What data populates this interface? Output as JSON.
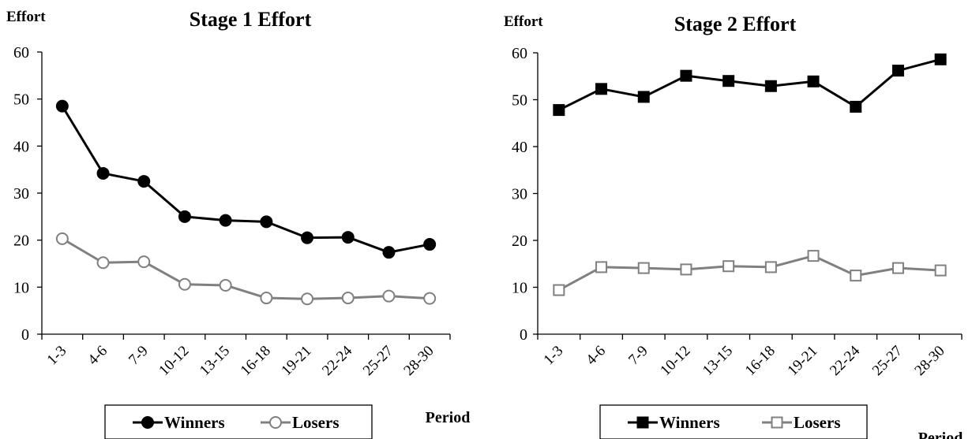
{
  "chart_data": [
    {
      "type": "line",
      "title": "Stage 1 Effort",
      "ylabel": "Effort",
      "xlabel": "Period",
      "ylim": [
        0,
        60
      ],
      "yticks": [
        0,
        10,
        20,
        30,
        40,
        50,
        60
      ],
      "categories": [
        "1-3",
        "4-6",
        "7-9",
        "10-12",
        "13-15",
        "16-18",
        "19-21",
        "22-24",
        "25-27",
        "28-30"
      ],
      "series": [
        {
          "name": "Winners",
          "marker": "circle-filled",
          "color": "#000000",
          "values": [
            48.5,
            34.2,
            32.5,
            25.0,
            24.2,
            23.9,
            20.5,
            20.6,
            17.4,
            19.1
          ]
        },
        {
          "name": "Losers",
          "marker": "circle-open",
          "color": "#808080",
          "values": [
            20.3,
            15.2,
            15.4,
            10.6,
            10.4,
            7.7,
            7.5,
            7.7,
            8.1,
            7.6
          ]
        }
      ],
      "legend_position": "bottom"
    },
    {
      "type": "line",
      "title": "Stage 2 Effort",
      "ylabel": "Effort",
      "xlabel": "Period",
      "ylim": [
        0,
        60
      ],
      "yticks": [
        0,
        10,
        20,
        30,
        40,
        50,
        60
      ],
      "categories": [
        "1-3",
        "4-6",
        "7-9",
        "10-12",
        "13-15",
        "16-18",
        "19-21",
        "22-24",
        "25-27",
        "28-30"
      ],
      "series": [
        {
          "name": "Winners",
          "marker": "square-filled",
          "color": "#000000",
          "values": [
            47.8,
            52.3,
            50.6,
            55.1,
            54.0,
            52.9,
            53.9,
            48.5,
            56.2,
            58.6
          ]
        },
        {
          "name": "Losers",
          "marker": "square-open",
          "color": "#808080",
          "values": [
            9.4,
            14.3,
            14.1,
            13.8,
            14.5,
            14.3,
            16.7,
            12.5,
            14.1,
            13.6
          ]
        }
      ],
      "legend_position": "bottom"
    }
  ]
}
